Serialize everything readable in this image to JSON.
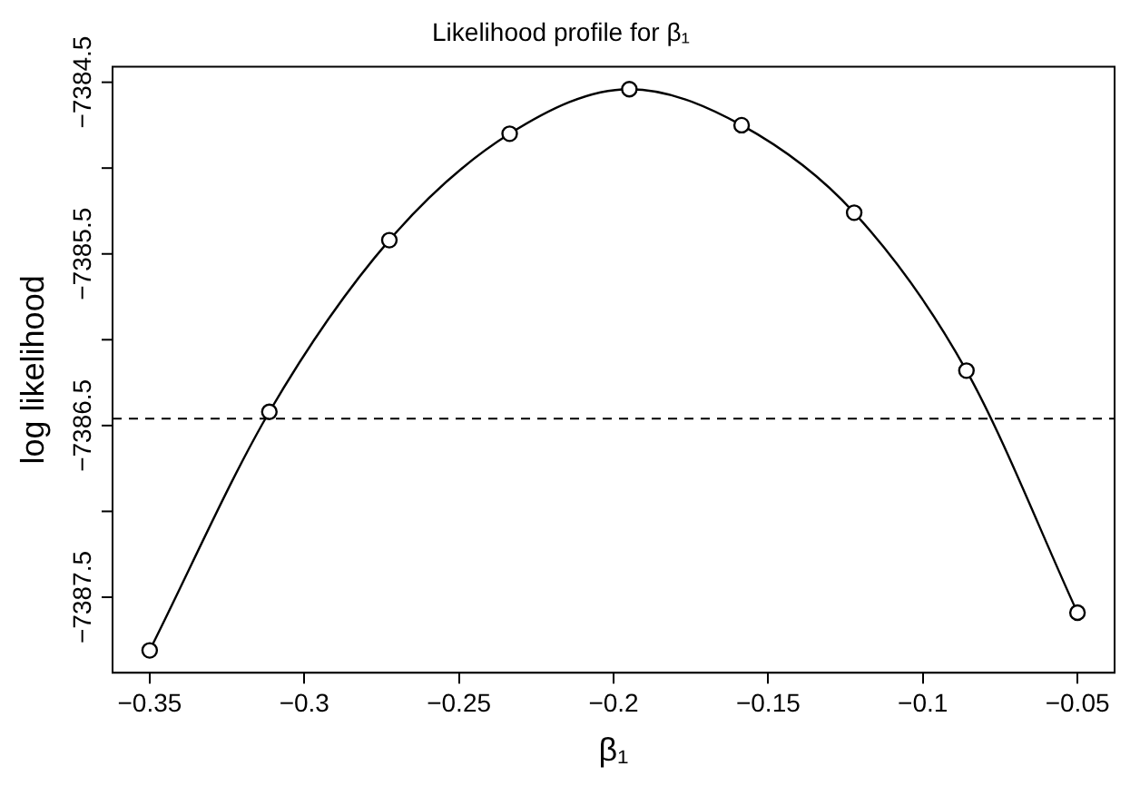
{
  "chart_data": {
    "type": "line",
    "title": "Likelihood profile for β₁",
    "xlabel": "β₁",
    "ylabel": "log likelihood",
    "x": [
      -0.35,
      -0.3113,
      -0.2725,
      -0.2336,
      -0.1949,
      -0.1586,
      -0.1222,
      -0.0859,
      -0.05
    ],
    "series": [
      {
        "color": "#000000",
        "values": [
          -7387.81,
          -7386.42,
          -7385.42,
          -7384.8,
          -7384.54,
          -7384.75,
          -7385.26,
          -7386.18,
          -7387.59
        ]
      }
    ],
    "xlim": [
      -0.362,
      -0.038
    ],
    "xticks": [
      -0.35,
      -0.3,
      -0.25,
      -0.2,
      -0.15,
      -0.1,
      -0.05
    ],
    "ylim": [
      -7387.94,
      -7384.41
    ],
    "yticks": [
      -7384.5,
      {
        "value": -7385,
        "label": null
      },
      -7385.5,
      {
        "value": -7386,
        "label": null
      },
      -7386.5,
      {
        "value": -7387,
        "label": null
      },
      -7387.5
    ],
    "ref_lines": [
      {
        "axis": "y",
        "value": -7386.46,
        "color": "#000000",
        "line_style": "dashed"
      }
    ],
    "marker": "circle",
    "line_style": "solid",
    "grid": false,
    "legend": false
  }
}
